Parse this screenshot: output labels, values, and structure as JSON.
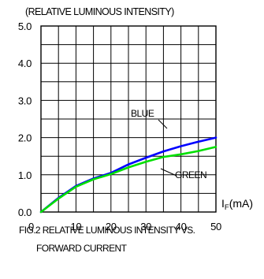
{
  "chart_data": {
    "type": "line",
    "title": "(RELATIVE LUMINOUS INTENSITY)",
    "xlabel_main": "I",
    "xlabel_sub": "F",
    "xlabel_unit": "(mA)",
    "x_ticks": [
      "0",
      "10",
      "20",
      "30",
      "40",
      "50"
    ],
    "y_ticks": [
      "0.0",
      "1.0",
      "2.0",
      "3.0",
      "4.0",
      "5.0"
    ],
    "xlim": [
      0,
      50
    ],
    "ylim": [
      0,
      5
    ],
    "x_grid": [
      5,
      10,
      15,
      20,
      25,
      30,
      35,
      40,
      45,
      50
    ],
    "y_grid": [
      0.5,
      1,
      1.5,
      2,
      2.5,
      3,
      3.5,
      4,
      4.5,
      5
    ],
    "grid": true,
    "series": [
      {
        "name": "BLUE",
        "color": "#0000ff",
        "x": [
          0,
          5,
          10,
          15,
          20,
          25,
          30,
          35,
          40,
          45,
          50
        ],
        "y": [
          0,
          0.38,
          0.7,
          0.9,
          1.05,
          1.28,
          1.46,
          1.63,
          1.77,
          1.89,
          2.0
        ]
      },
      {
        "name": "GREEN",
        "color": "#00e000",
        "x": [
          0,
          5,
          10,
          15,
          20,
          25,
          30,
          35,
          40,
          45,
          50
        ],
        "y": [
          0,
          0.36,
          0.68,
          0.88,
          1.02,
          1.2,
          1.35,
          1.48,
          1.55,
          1.64,
          1.75
        ]
      }
    ],
    "caption_line1": "FIG.2 RELATIVE LUMINOUS INTENSITY VS.",
    "caption_line2": "FORWARD CURRENT"
  }
}
